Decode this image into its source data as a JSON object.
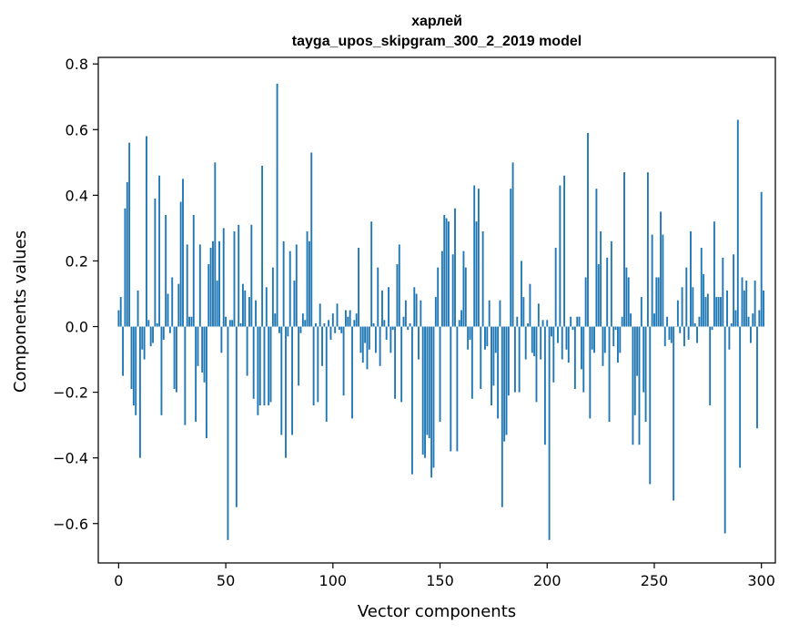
{
  "chart_data": {
    "type": "bar",
    "title": [
      "харлей",
      "tayga_upos_skipgram_300_2_2019 model"
    ],
    "xlabel": "Vector components",
    "ylabel": "Components values",
    "xlim": [
      -9.5,
      306.5
    ],
    "ylim": [
      -0.72,
      0.82
    ],
    "xticks": [
      0,
      50,
      100,
      150,
      200,
      250,
      300
    ],
    "xtick_labels": [
      "0",
      "50",
      "100",
      "150",
      "200",
      "250",
      "300"
    ],
    "yticks": [
      -0.6,
      -0.4,
      -0.2,
      0.0,
      0.2,
      0.4,
      0.6,
      0.8
    ],
    "ytick_labels": [
      "−0.6",
      "−0.4",
      "−0.2",
      "0.0",
      "0.2",
      "0.4",
      "0.6",
      "0.8"
    ],
    "bar_color": "#1f77b4",
    "grid": false,
    "values": [
      0.05,
      0.09,
      -0.15,
      0.36,
      0.44,
      0.56,
      -0.19,
      -0.24,
      -0.27,
      0.11,
      -0.4,
      -0.07,
      -0.1,
      0.58,
      0.02,
      -0.06,
      -0.05,
      0.39,
      0.01,
      0.46,
      -0.27,
      -0.04,
      0.34,
      0.1,
      -0.02,
      0.15,
      -0.19,
      -0.2,
      0.13,
      0.38,
      0.45,
      -0.3,
      0.25,
      0.03,
      0.03,
      0.34,
      -0.29,
      -0.12,
      0.25,
      -0.14,
      -0.17,
      -0.34,
      0.19,
      0.24,
      0.26,
      0.5,
      0.14,
      0.26,
      -0.08,
      0.3,
      0.03,
      -0.65,
      0.02,
      0.02,
      0.29,
      -0.55,
      0.31,
      0.01,
      0.13,
      0.11,
      -0.15,
      0.09,
      0.31,
      -0.22,
      0.08,
      -0.27,
      -0.24,
      0.49,
      -0.24,
      0.12,
      -0.24,
      -0.23,
      0.18,
      0.04,
      0.74,
      -0.02,
      -0.33,
      0.26,
      -0.4,
      -0.03,
      0.23,
      -0.33,
      0.14,
      0.25,
      -0.18,
      -0.02,
      0.04,
      0.02,
      0.29,
      0.26,
      0.53,
      -0.24,
      0.01,
      -0.23,
      0.07,
      -0.12,
      0.01,
      -0.29,
      0.02,
      -0.04,
      0.04,
      -0.02,
      0.07,
      -0.01,
      -0.02,
      -0.21,
      0.05,
      0.03,
      0.05,
      -0.28,
      0.02,
      0.04,
      0.24,
      -0.08,
      -0.11,
      -0.05,
      -0.13,
      -0.07,
      0.32,
      0.01,
      -0.08,
      0.18,
      -0.12,
      0.11,
      0.02,
      -0.04,
      0.12,
      -0.08,
      -0.01,
      -0.22,
      0.19,
      0.25,
      -0.23,
      0.03,
      0.08,
      -0.01,
      0.01,
      -0.45,
      0.12,
      0.1,
      -0.1,
      0.08,
      -0.39,
      -0.4,
      -0.33,
      -0.34,
      -0.46,
      -0.43,
      0.09,
      0.18,
      -0.29,
      0.23,
      0.34,
      0.33,
      0.32,
      -0.38,
      0.22,
      0.36,
      -0.38,
      0.02,
      0.05,
      0.23,
      0.18,
      -0.07,
      -0.04,
      -0.22,
      0.43,
      0.32,
      0.42,
      -0.19,
      0.29,
      -0.07,
      -0.06,
      0.08,
      -0.24,
      -0.18,
      -0.08,
      -0.28,
      0.08,
      -0.55,
      -0.35,
      -0.33,
      -0.21,
      0.42,
      0.5,
      -0.2,
      0.03,
      -0.2,
      0.2,
      0.09,
      -0.1,
      0.01,
      0.13,
      -0.08,
      -0.09,
      -0.23,
      0.07,
      -0.1,
      0.02,
      -0.36,
      0.02,
      -0.65,
      -0.03,
      -0.17,
      0.24,
      -0.05,
      0.43,
      -0.1,
      0.46,
      -0.07,
      -0.11,
      0.03,
      -0.01,
      -0.19,
      0.03,
      0.03,
      -0.13,
      -0.2,
      0.15,
      0.59,
      -0.28,
      -0.07,
      -0.08,
      0.42,
      0.19,
      0.29,
      -0.12,
      -0.08,
      0.21,
      -0.29,
      0.26,
      -0.06,
      -0.01,
      -0.11,
      -0.08,
      0.03,
      0.47,
      0.18,
      0.15,
      0.04,
      -0.36,
      -0.27,
      -0.15,
      -0.36,
      0.09,
      -0.2,
      -0.29,
      0.47,
      -0.48,
      0.28,
      0.04,
      0.15,
      0.15,
      0.35,
      0.28,
      -0.06,
      0.03,
      -0.04,
      -0.05,
      -0.53,
      0.0,
      0.08,
      -0.02,
      0.12,
      -0.06,
      0.18,
      -0.04,
      0.29,
      0.12,
      0.01,
      -0.05,
      0.03,
      0.24,
      0.16,
      0.09,
      0.1,
      -0.24,
      -0.01,
      0.32,
      0.09,
      0.09,
      0.09,
      0.21,
      -0.63,
      0.11,
      -0.07,
      0.01,
      0.22,
      0.05,
      0.63,
      -0.43,
      0.15,
      0.11,
      0.14,
      0.03,
      -0.05,
      0.04,
      0.14,
      -0.31,
      0.05,
      0.41,
      0.11
    ]
  }
}
